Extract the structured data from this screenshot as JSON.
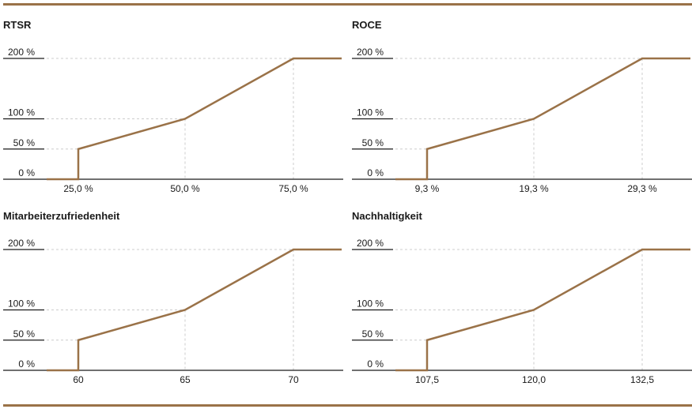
{
  "colors": {
    "accent": "#9a7248",
    "grid": "#cccccc",
    "text": "#1a1a1a"
  },
  "chart_data": [
    {
      "type": "line",
      "title": "RTSR",
      "y_tick_labels": [
        "0 %",
        "50 %",
        "100 %",
        "200 %"
      ],
      "y_ticks": [
        0,
        50,
        100,
        200
      ],
      "x_tick_labels": [
        "25,0 %",
        "50,0 %",
        "75,0 %"
      ],
      "series": [
        {
          "x": [
            "<25,0 %",
            "25,0 %",
            "25,0 %",
            "50,0 %",
            "75,0 %",
            ">75,0 %"
          ],
          "values": [
            0,
            0,
            50,
            100,
            200,
            200
          ]
        }
      ],
      "ylim": [
        0,
        200
      ],
      "grid": true
    },
    {
      "type": "line",
      "title": "ROCE",
      "y_tick_labels": [
        "0 %",
        "50 %",
        "100 %",
        "200 %"
      ],
      "y_ticks": [
        0,
        50,
        100,
        200
      ],
      "x_tick_labels": [
        "9,3 %",
        "19,3 %",
        "29,3 %"
      ],
      "series": [
        {
          "x": [
            "<9,3 %",
            "9,3 %",
            "9,3 %",
            "19,3 %",
            "29,3 %",
            ">29,3 %"
          ],
          "values": [
            0,
            0,
            50,
            100,
            200,
            200
          ]
        }
      ],
      "ylim": [
        0,
        200
      ],
      "grid": true
    },
    {
      "type": "line",
      "title": "Mitarbeiterzufriedenheit",
      "y_tick_labels": [
        "0 %",
        "50 %",
        "100 %",
        "200 %"
      ],
      "y_ticks": [
        0,
        50,
        100,
        200
      ],
      "x_tick_labels": [
        "60",
        "65",
        "70"
      ],
      "series": [
        {
          "x": [
            "<60",
            "60",
            "60",
            "65",
            "70",
            ">70"
          ],
          "values": [
            0,
            0,
            50,
            100,
            200,
            200
          ]
        }
      ],
      "ylim": [
        0,
        200
      ],
      "grid": true
    },
    {
      "type": "line",
      "title": "Nachhaltigkeit",
      "y_tick_labels": [
        "0 %",
        "50 %",
        "100 %",
        "200 %"
      ],
      "y_ticks": [
        0,
        50,
        100,
        200
      ],
      "x_tick_labels": [
        "107,5",
        "120,0",
        "132,5"
      ],
      "series": [
        {
          "x": [
            "<107,5",
            "107,5",
            "107,5",
            "120,0",
            "132,5",
            ">132,5"
          ],
          "values": [
            0,
            0,
            50,
            100,
            200,
            200
          ]
        }
      ],
      "ylim": [
        0,
        200
      ],
      "grid": true
    }
  ]
}
